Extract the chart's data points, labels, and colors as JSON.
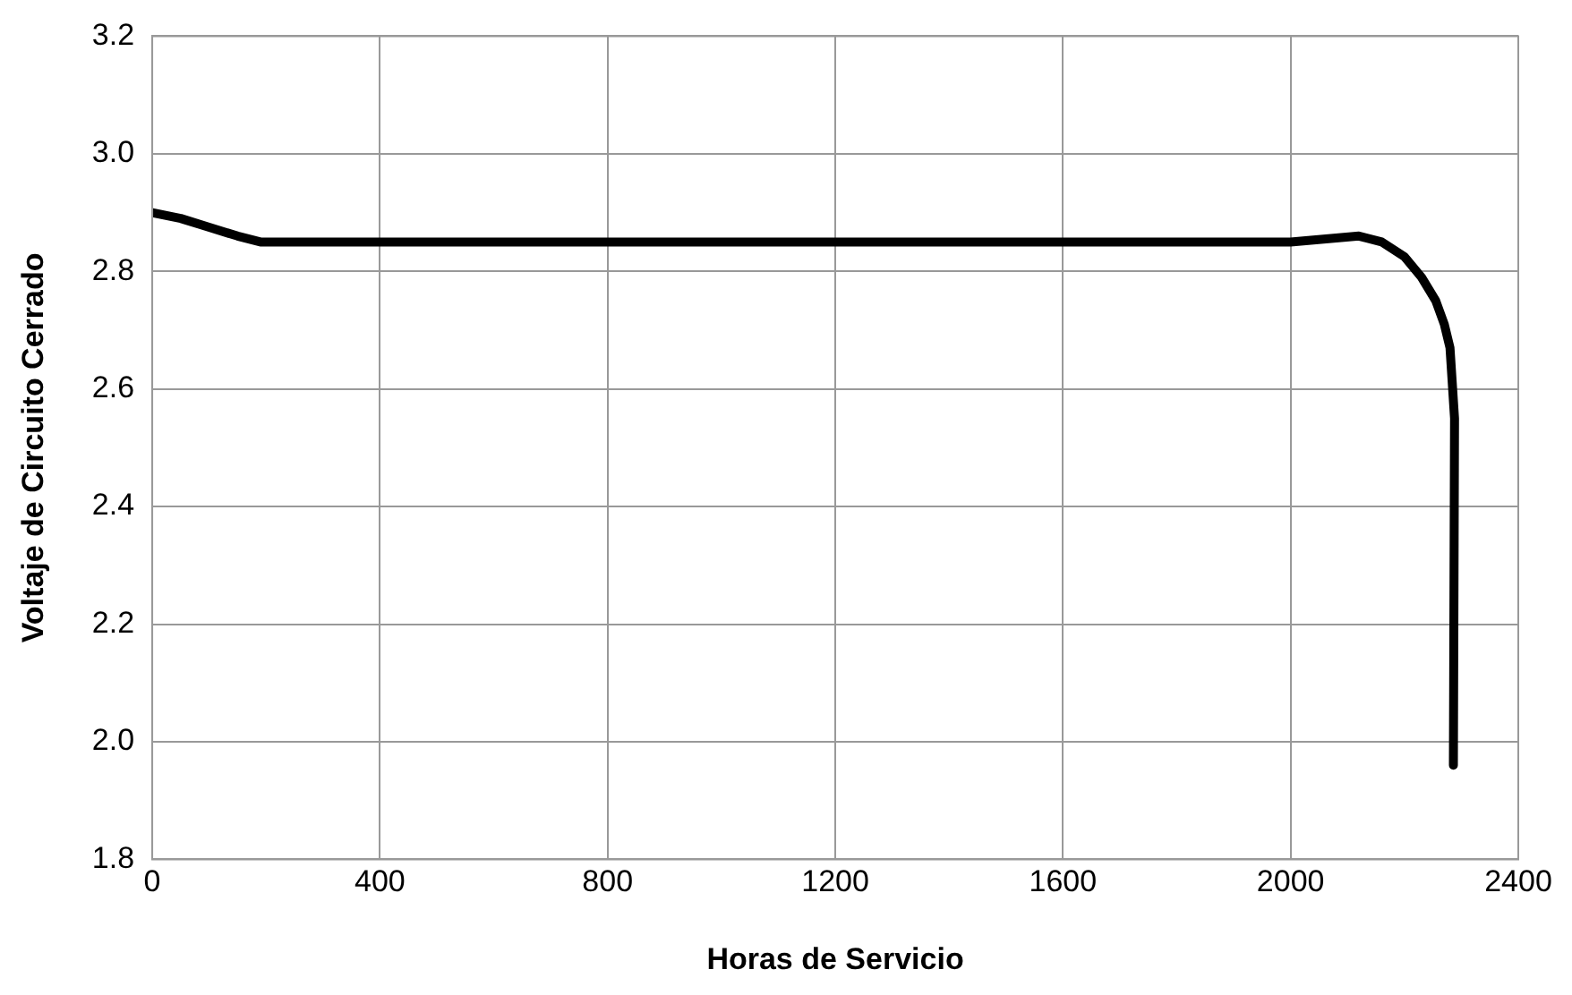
{
  "chart_data": {
    "type": "line",
    "xlabel": "Horas de Servicio",
    "ylabel": "Voltaje de Circuito Cerrado",
    "x": [
      0,
      50,
      100,
      150,
      190,
      1000,
      2000,
      2120,
      2160,
      2200,
      2230,
      2255,
      2270,
      2280,
      2288,
      2286
    ],
    "series": [
      {
        "color": "#000000",
        "values": [
          2.9,
          2.89,
          2.875,
          2.86,
          2.85,
          2.85,
          2.85,
          2.86,
          2.85,
          2.825,
          2.79,
          2.75,
          2.71,
          2.67,
          2.55,
          1.96
        ]
      }
    ],
    "xlim": [
      0,
      2400
    ],
    "xticks": [
      0,
      400,
      800,
      1200,
      1600,
      2000,
      2400
    ],
    "ylim": [
      1.8,
      3.2
    ],
    "yticks": [
      {
        "value": 1.8,
        "label": "1.8"
      },
      {
        "value": 2.0,
        "label": "2.0"
      },
      {
        "value": 2.2,
        "label": "2.2"
      },
      {
        "value": 2.4,
        "label": "2.4"
      },
      {
        "value": 2.6,
        "label": "2.6"
      },
      {
        "value": 2.8,
        "label": "2.8"
      },
      {
        "value": 3.0,
        "label": "3.0"
      },
      {
        "value": 3.2,
        "label": "3.2"
      }
    ],
    "grid": true,
    "legend": false,
    "marker": "none",
    "line_style": "solid"
  }
}
